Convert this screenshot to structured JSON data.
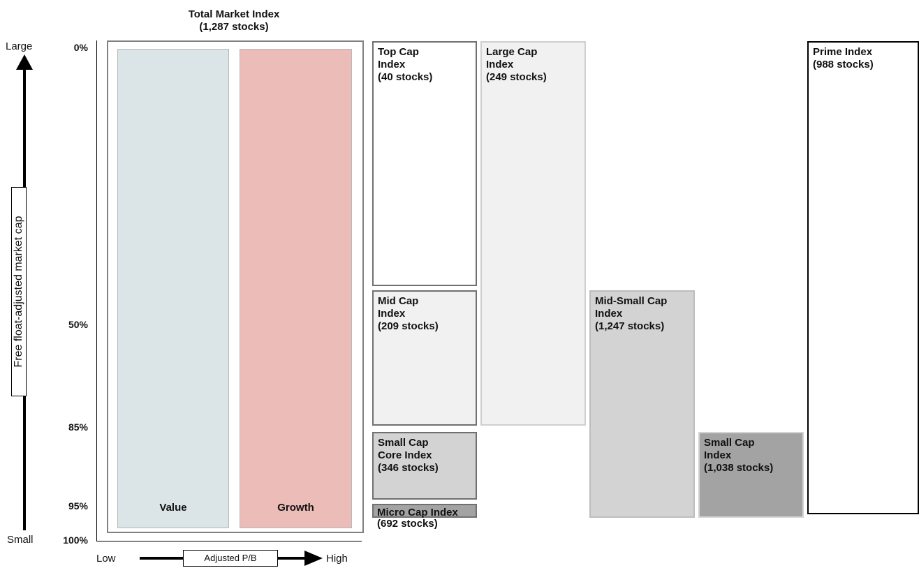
{
  "title": {
    "line1": "Total Market Index",
    "line2": "(1,287 stocks)"
  },
  "y_axis": {
    "top": "Large",
    "bottom": "Small",
    "label": "Free float-adjusted market cap"
  },
  "x_axis": {
    "left": "Low",
    "right": "High",
    "label": "Adjusted P/B"
  },
  "percentages": [
    "0%",
    "50%",
    "85%",
    "95%",
    "100%"
  ],
  "style_columns": {
    "value": "Value",
    "growth": "Growth"
  },
  "indices": {
    "top_cap": [
      "Top Cap",
      "Index",
      "(40 stocks)"
    ],
    "mid_cap": [
      "Mid Cap",
      "Index",
      "(209 stocks)"
    ],
    "small_cap_core": [
      "Small Cap",
      "Core Index",
      "(346 stocks)"
    ],
    "micro_cap": [
      "Micro Cap Index",
      "(692 stocks)"
    ],
    "large_cap": [
      "Large Cap",
      "Index",
      "(249 stocks)"
    ],
    "mid_small_cap": [
      "Mid-Small Cap",
      "Index",
      "(1,247 stocks)"
    ],
    "small_cap": [
      "Small Cap",
      "Index",
      "(1,038 stocks)"
    ],
    "prime": [
      "Prime Index",
      "(988 stocks)"
    ]
  },
  "colors": {
    "value_fill": "#dbe5e8",
    "growth_fill": "#ecbcb8",
    "light_gray": "#f1f1f1",
    "mid_gray": "#d3d3d3",
    "dark_gray": "#a3a3a3"
  }
}
